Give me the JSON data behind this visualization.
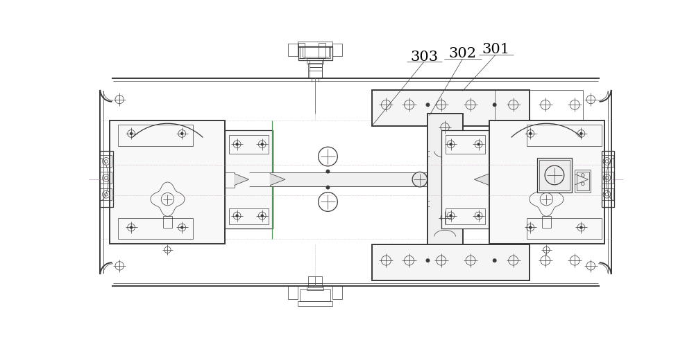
{
  "bg_color": "#ffffff",
  "line_color": "#3a3a3a",
  "green_color": "#5a9a5a",
  "purple_color": "#c0a0c0",
  "thin_lw": 0.5,
  "med_lw": 0.9,
  "thick_lw": 1.4,
  "label_301": "301",
  "label_302": "302",
  "label_303": "303",
  "label_fs": 15,
  "fig_width": 10.0,
  "fig_height": 5.04
}
